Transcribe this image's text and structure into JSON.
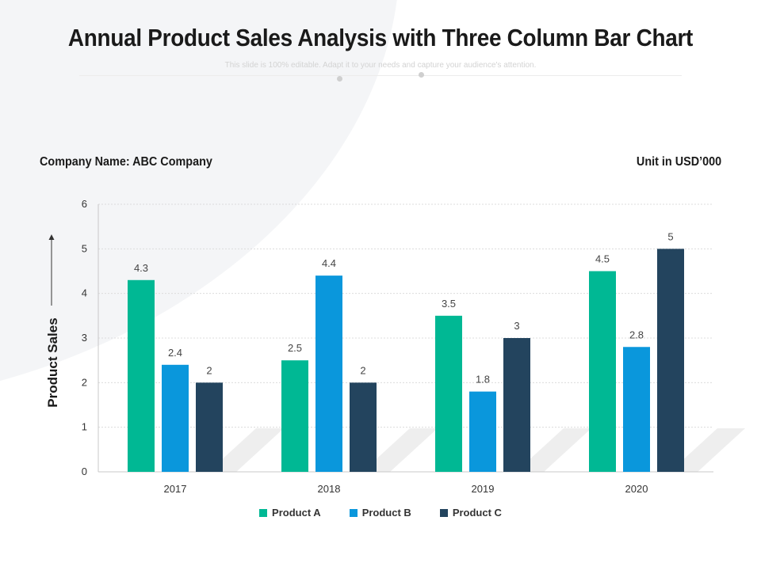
{
  "slide": {
    "title": "Annual Product Sales Analysis with Three Column Bar Chart",
    "subtitle": "This slide is 100% editable. Adapt it to your needs and capture your audience's attention.",
    "company": "Company Name: ABC Company",
    "unit": "Unit in USD’000"
  },
  "chart_data": {
    "type": "bar",
    "categories": [
      "2017",
      "2018",
      "2019",
      "2020"
    ],
    "series": [
      {
        "name": "Product A",
        "color": "#00b894",
        "values": [
          4.3,
          2.5,
          3.5,
          4.5
        ],
        "labels": [
          "4.3",
          "2.5",
          "3.5",
          "4.5"
        ]
      },
      {
        "name": "Product B",
        "color": "#0a97dc",
        "values": [
          2.4,
          4.4,
          1.8,
          2.8
        ],
        "labels": [
          "2.4",
          "4.4",
          "1.8",
          "2.8"
        ]
      },
      {
        "name": "Product C",
        "color": "#23445e",
        "values": [
          2,
          2,
          3,
          5
        ],
        "labels": [
          "2",
          "2",
          "3",
          "5"
        ]
      }
    ],
    "ylabel": "Product Sales",
    "xlabel": "",
    "ylim": [
      0,
      6
    ],
    "yticks": [
      "0",
      "1",
      "2",
      "3",
      "4",
      "5",
      "6"
    ],
    "grid": true,
    "legend": "bottom-center"
  }
}
